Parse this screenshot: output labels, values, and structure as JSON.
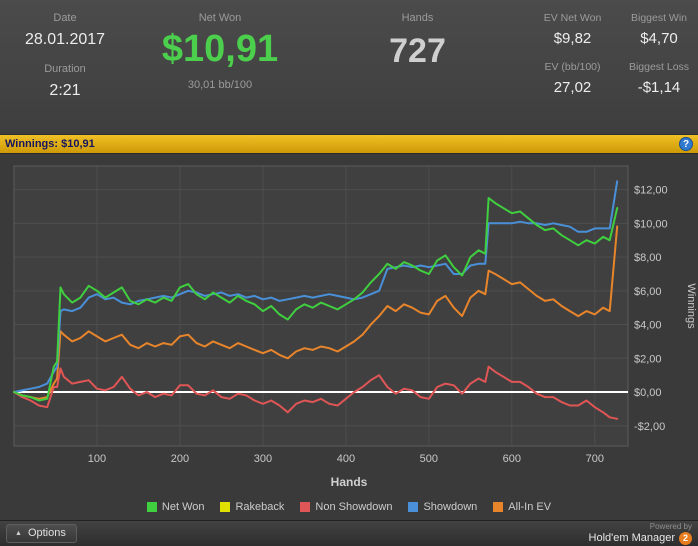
{
  "header": {
    "date_label": "Date",
    "date_value": "28.01.2017",
    "duration_label": "Duration",
    "duration_value": "2:21",
    "net_won_label": "Net Won",
    "net_won_value": "$10,91",
    "net_won_sub": "30,01 bb/100",
    "hands_label": "Hands",
    "hands_value": "727",
    "ev_net_won_label": "EV Net Won",
    "ev_net_won_value": "$9,82",
    "ev_bb_label": "EV (bb/100)",
    "ev_bb_value": "27,02",
    "biggest_win_label": "Biggest Win",
    "biggest_win_value": "$4,70",
    "biggest_loss_label": "Biggest Loss",
    "biggest_loss_value": "-$1,14"
  },
  "winnings_bar": {
    "text": "Winnings: $10,91",
    "help_icon": "?"
  },
  "colors": {
    "accent_green": "#4ccf4c",
    "bar_gold": "#e0a810",
    "help_blue": "#2f79cf",
    "brand_orange": "#e87d1e",
    "zero_line": "#ffffff"
  },
  "chart_data": {
    "type": "line",
    "title": "Winnings: $10,91",
    "xlabel": "Hands",
    "ylabel": "Winnings",
    "xlim": [
      0,
      740
    ],
    "ylim": [
      -3.2,
      13.4
    ],
    "grid": true,
    "legend_position": "bottom",
    "x_ticks": [
      100,
      200,
      300,
      400,
      500,
      600,
      700
    ],
    "y_ticks": [
      {
        "v": -2,
        "label": "-$2,00"
      },
      {
        "v": 0,
        "label": "$0,00"
      },
      {
        "v": 2,
        "label": "$2,00"
      },
      {
        "v": 4,
        "label": "$4,00"
      },
      {
        "v": 6,
        "label": "$6,00"
      },
      {
        "v": 8,
        "label": "$8,00"
      },
      {
        "v": 10,
        "label": "$10,00"
      },
      {
        "v": 12,
        "label": "$12,00"
      }
    ],
    "zero_line_color": "#ffffff",
    "x": [
      0,
      10,
      20,
      30,
      40,
      48,
      52,
      56,
      60,
      70,
      80,
      90,
      100,
      110,
      120,
      130,
      140,
      150,
      160,
      170,
      180,
      190,
      200,
      210,
      220,
      230,
      240,
      250,
      260,
      270,
      280,
      290,
      300,
      310,
      320,
      330,
      340,
      350,
      360,
      370,
      380,
      390,
      400,
      410,
      420,
      430,
      440,
      450,
      460,
      470,
      480,
      490,
      500,
      510,
      520,
      530,
      540,
      550,
      560,
      568,
      572,
      580,
      590,
      600,
      610,
      620,
      630,
      640,
      650,
      660,
      670,
      680,
      690,
      700,
      710,
      718,
      727
    ],
    "series": [
      {
        "name": "Net Won",
        "color": "#3fcf3f",
        "values": [
          0,
          -0.2,
          -0.3,
          -0.5,
          -0.4,
          1.5,
          1.8,
          6.2,
          5.8,
          5.3,
          5.6,
          6.3,
          6.0,
          5.6,
          5.9,
          6.2,
          5.4,
          5.2,
          5.5,
          5.3,
          5.6,
          5.4,
          6.2,
          6.4,
          5.8,
          5.5,
          5.9,
          5.6,
          5.3,
          5.7,
          5.4,
          5.2,
          4.8,
          5.1,
          4.6,
          4.3,
          4.9,
          5.2,
          5.0,
          5.3,
          5.1,
          4.9,
          5.2,
          5.5,
          5.9,
          6.5,
          7.0,
          7.6,
          7.3,
          7.7,
          7.5,
          7.2,
          7.0,
          7.8,
          8.1,
          7.4,
          6.9,
          8.0,
          8.4,
          8.2,
          11.5,
          11.2,
          10.9,
          10.6,
          10.7,
          10.3,
          9.9,
          9.6,
          9.7,
          9.3,
          9.0,
          8.7,
          9.0,
          8.8,
          9.2,
          9.0,
          10.91
        ]
      },
      {
        "name": "Rakeback",
        "color": "#e0e000",
        "values": [
          0,
          0,
          0,
          0,
          0,
          0,
          0,
          0,
          0,
          0,
          0,
          0,
          0,
          0,
          0,
          0,
          0,
          0,
          0,
          0,
          0,
          0,
          0,
          0,
          0,
          0,
          0,
          0,
          0,
          0,
          0,
          0,
          0,
          0,
          0,
          0,
          0,
          0,
          0,
          0,
          0,
          0,
          0,
          0,
          0,
          0,
          0,
          0,
          0,
          0,
          0,
          0,
          0,
          0,
          0,
          0,
          0,
          0,
          0,
          0,
          0,
          0,
          0,
          0,
          0,
          0,
          0,
          0,
          0,
          0,
          0,
          0,
          0,
          0,
          0,
          0,
          0
        ]
      },
      {
        "name": "Non Showdown",
        "color": "#e05555",
        "values": [
          0,
          -0.3,
          -0.5,
          -0.8,
          -0.9,
          0.3,
          0.3,
          1.4,
          0.9,
          0.5,
          0.6,
          0.7,
          0.2,
          0.1,
          0.3,
          0.9,
          0.2,
          -0.2,
          0.0,
          -0.3,
          -0.1,
          -0.2,
          0.4,
          0.4,
          -0.1,
          -0.2,
          0.1,
          -0.3,
          -0.4,
          -0.1,
          -0.2,
          -0.5,
          -0.7,
          -0.5,
          -0.8,
          -1.2,
          -0.7,
          -0.5,
          -0.6,
          -0.4,
          -0.7,
          -0.8,
          -0.4,
          0.0,
          0.3,
          0.7,
          1.0,
          0.3,
          -0.1,
          0.2,
          0.1,
          -0.3,
          -0.4,
          0.3,
          0.5,
          0.4,
          -0.1,
          0.5,
          0.8,
          0.6,
          1.5,
          1.2,
          0.9,
          0.6,
          0.6,
          0.3,
          -0.1,
          -0.3,
          -0.3,
          -0.6,
          -0.8,
          -0.8,
          -0.5,
          -0.9,
          -1.2,
          -1.5,
          -1.59
        ]
      },
      {
        "name": "Showdown",
        "color": "#4a90d9",
        "values": [
          0,
          0.1,
          0.2,
          0.3,
          0.5,
          1.2,
          1.5,
          4.8,
          4.9,
          4.8,
          5.0,
          5.6,
          5.8,
          5.5,
          5.6,
          5.3,
          5.2,
          5.4,
          5.5,
          5.6,
          5.7,
          5.6,
          5.8,
          6.0,
          5.9,
          5.7,
          5.8,
          5.9,
          5.7,
          5.8,
          5.6,
          5.7,
          5.5,
          5.6,
          5.4,
          5.5,
          5.6,
          5.7,
          5.6,
          5.7,
          5.8,
          5.7,
          5.6,
          5.5,
          5.6,
          5.8,
          6.0,
          7.3,
          7.4,
          7.5,
          7.4,
          7.5,
          7.4,
          7.5,
          7.6,
          7.0,
          7.0,
          7.5,
          7.6,
          7.6,
          10.0,
          10.0,
          10.0,
          10.0,
          10.1,
          10.0,
          10.0,
          9.9,
          10.0,
          9.9,
          9.8,
          9.5,
          9.5,
          9.7,
          9.7,
          9.7,
          12.5
        ]
      },
      {
        "name": "All-In EV",
        "color": "#e8852b",
        "values": [
          0,
          -0.2,
          -0.3,
          -0.4,
          -0.3,
          0.5,
          0.8,
          3.6,
          3.4,
          3.0,
          3.2,
          3.6,
          3.3,
          3.0,
          3.2,
          3.4,
          2.8,
          2.6,
          2.9,
          2.7,
          2.9,
          2.8,
          3.3,
          3.4,
          2.9,
          2.7,
          3.0,
          2.8,
          2.6,
          2.9,
          2.7,
          2.5,
          2.3,
          2.5,
          2.2,
          2.0,
          2.4,
          2.6,
          2.5,
          2.7,
          2.6,
          2.4,
          2.7,
          3.0,
          3.4,
          4.0,
          4.5,
          5.1,
          4.8,
          5.2,
          5.0,
          4.7,
          4.6,
          5.4,
          5.7,
          5.0,
          4.5,
          5.6,
          6.0,
          5.8,
          7.2,
          7.0,
          6.7,
          6.4,
          6.5,
          6.1,
          5.7,
          5.4,
          5.5,
          5.1,
          4.8,
          4.5,
          4.8,
          4.6,
          5.0,
          4.8,
          9.82
        ]
      }
    ]
  },
  "footer": {
    "options_label": "Options",
    "powered_by": "Powered by",
    "brand": "Hold'em Manager",
    "brand_badge": "2"
  }
}
